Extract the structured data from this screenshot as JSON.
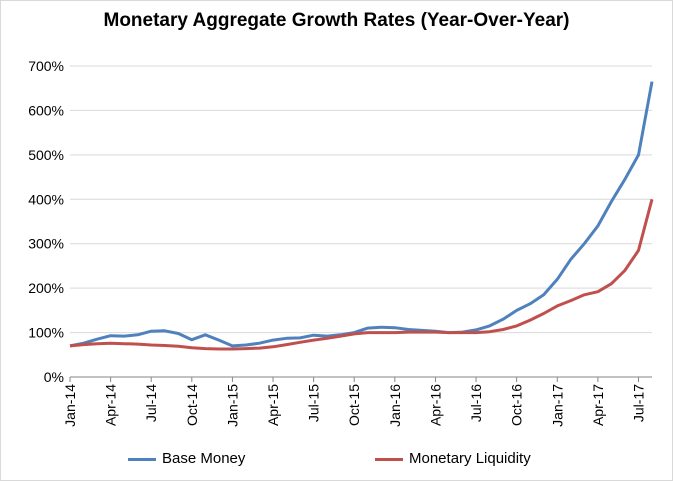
{
  "chart_data": {
    "type": "line",
    "title": "Monetary Aggregate Growth Rates (Year-Over-Year)",
    "xlabel": "",
    "ylabel": "",
    "ylim": [
      0,
      700
    ],
    "y_ticks": [
      "0%",
      "100%",
      "200%",
      "300%",
      "400%",
      "500%",
      "600%",
      "700%"
    ],
    "x_ticks": [
      "Jan-14",
      "Apr-14",
      "Jul-14",
      "Oct-14",
      "Jan-15",
      "Apr-15",
      "Jul-15",
      "Oct-15",
      "Jan-16",
      "Apr-16",
      "Jul-16",
      "Oct-16",
      "Jan-17",
      "Apr-17",
      "Jul-17"
    ],
    "x_range": [
      "2014-01",
      "2017-08"
    ],
    "grid": "horizontal",
    "legend": "bottom",
    "series": [
      {
        "name": "Base Money",
        "color": "#4f81bd",
        "points": [
          [
            "2014-01",
            70
          ],
          [
            "2014-02",
            76
          ],
          [
            "2014-03",
            85
          ],
          [
            "2014-04",
            93
          ],
          [
            "2014-05",
            92
          ],
          [
            "2014-06",
            95
          ],
          [
            "2014-07",
            103
          ],
          [
            "2014-08",
            104
          ],
          [
            "2014-09",
            98
          ],
          [
            "2014-10",
            84
          ],
          [
            "2014-11",
            95
          ],
          [
            "2014-12",
            83
          ],
          [
            "2015-01",
            70
          ],
          [
            "2015-02",
            72
          ],
          [
            "2015-03",
            76
          ],
          [
            "2015-04",
            83
          ],
          [
            "2015-05",
            87
          ],
          [
            "2015-06",
            88
          ],
          [
            "2015-07",
            94
          ],
          [
            "2015-08",
            92
          ],
          [
            "2015-09",
            95
          ],
          [
            "2015-10",
            100
          ],
          [
            "2015-11",
            110
          ],
          [
            "2015-12",
            112
          ],
          [
            "2016-01",
            111
          ],
          [
            "2016-02",
            107
          ],
          [
            "2016-03",
            105
          ],
          [
            "2016-04",
            103
          ],
          [
            "2016-05",
            100
          ],
          [
            "2016-06",
            101
          ],
          [
            "2016-07",
            106
          ],
          [
            "2016-08",
            115
          ],
          [
            "2016-09",
            130
          ],
          [
            "2016-10",
            150
          ],
          [
            "2016-11",
            165
          ],
          [
            "2016-12",
            185
          ],
          [
            "2017-01",
            220
          ],
          [
            "2017-02",
            265
          ],
          [
            "2017-03",
            300
          ],
          [
            "2017-04",
            340
          ],
          [
            "2017-05",
            395
          ],
          [
            "2017-06",
            445
          ],
          [
            "2017-07",
            500
          ],
          [
            "2017-08",
            665
          ]
        ]
      },
      {
        "name": "Monetary Liquidity",
        "color": "#c0504d",
        "points": [
          [
            "2014-01",
            70
          ],
          [
            "2014-02",
            73
          ],
          [
            "2014-03",
            75
          ],
          [
            "2014-04",
            76
          ],
          [
            "2014-05",
            75
          ],
          [
            "2014-06",
            74
          ],
          [
            "2014-07",
            72
          ],
          [
            "2014-08",
            71
          ],
          [
            "2014-09",
            69
          ],
          [
            "2014-10",
            66
          ],
          [
            "2014-11",
            64
          ],
          [
            "2014-12",
            63
          ],
          [
            "2015-01",
            63
          ],
          [
            "2015-02",
            64
          ],
          [
            "2015-03",
            65
          ],
          [
            "2015-04",
            68
          ],
          [
            "2015-05",
            73
          ],
          [
            "2015-06",
            78
          ],
          [
            "2015-07",
            83
          ],
          [
            "2015-08",
            87
          ],
          [
            "2015-09",
            92
          ],
          [
            "2015-10",
            97
          ],
          [
            "2015-11",
            100
          ],
          [
            "2015-12",
            100
          ],
          [
            "2016-01",
            100
          ],
          [
            "2016-02",
            101
          ],
          [
            "2016-03",
            101
          ],
          [
            "2016-04",
            101
          ],
          [
            "2016-05",
            100
          ],
          [
            "2016-06",
            100
          ],
          [
            "2016-07",
            100
          ],
          [
            "2016-08",
            102
          ],
          [
            "2016-09",
            107
          ],
          [
            "2016-10",
            115
          ],
          [
            "2016-11",
            128
          ],
          [
            "2016-12",
            143
          ],
          [
            "2017-01",
            160
          ],
          [
            "2017-02",
            172
          ],
          [
            "2017-03",
            185
          ],
          [
            "2017-04",
            192
          ],
          [
            "2017-05",
            210
          ],
          [
            "2017-06",
            240
          ],
          [
            "2017-07",
            285
          ],
          [
            "2017-08",
            400
          ]
        ]
      }
    ]
  }
}
